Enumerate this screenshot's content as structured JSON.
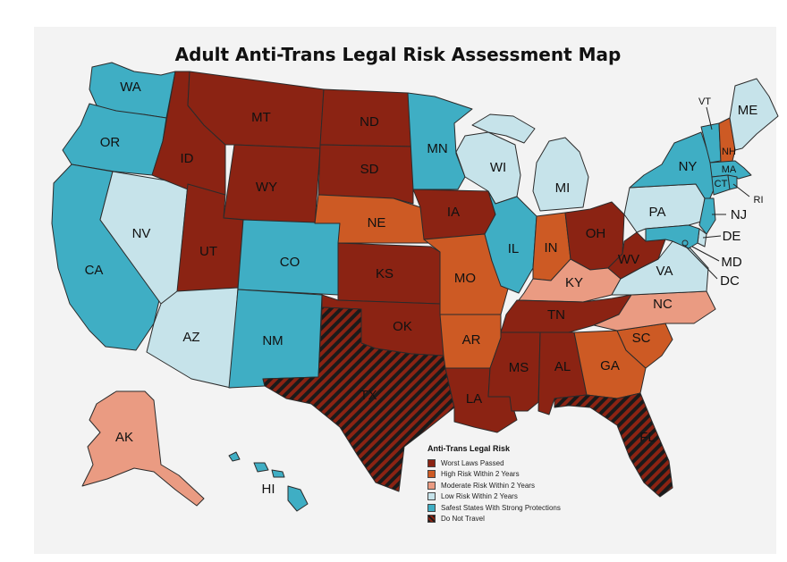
{
  "title": "Adult Anti-Trans Legal Risk Assessment Map",
  "legend": {
    "title": "Anti-Trans Legal Risk",
    "items": [
      {
        "key": "worst",
        "label": "Worst Laws Passed",
        "color": "#8b2313"
      },
      {
        "key": "high",
        "label": "High Risk Within 2 Years",
        "color": "#cd5a24"
      },
      {
        "key": "moderate",
        "label": "Moderate Risk Within 2 Years",
        "color": "#ea9b82"
      },
      {
        "key": "low",
        "label": "Low Risk Within 2 Years",
        "color": "#c6e3ea"
      },
      {
        "key": "safe",
        "label": "Safest States With Strong Protections",
        "color": "#3faec4"
      },
      {
        "key": "donot",
        "label": "Do Not Travel",
        "color": "#5a1a10"
      }
    ]
  },
  "states": {
    "WA": {
      "label": "WA",
      "risk": "safe"
    },
    "OR": {
      "label": "OR",
      "risk": "safe"
    },
    "CA": {
      "label": "CA",
      "risk": "safe"
    },
    "NV": {
      "label": "NV",
      "risk": "low"
    },
    "ID": {
      "label": "ID",
      "risk": "worst"
    },
    "MT": {
      "label": "MT",
      "risk": "worst"
    },
    "WY": {
      "label": "WY",
      "risk": "worst"
    },
    "UT": {
      "label": "UT",
      "risk": "worst"
    },
    "AZ": {
      "label": "AZ",
      "risk": "low"
    },
    "CO": {
      "label": "CO",
      "risk": "safe"
    },
    "NM": {
      "label": "NM",
      "risk": "safe"
    },
    "ND": {
      "label": "ND",
      "risk": "worst"
    },
    "SD": {
      "label": "SD",
      "risk": "worst"
    },
    "NE": {
      "label": "NE",
      "risk": "high"
    },
    "KS": {
      "label": "KS",
      "risk": "worst"
    },
    "OK": {
      "label": "OK",
      "risk": "worst"
    },
    "TX": {
      "label": "TX",
      "risk": "donot"
    },
    "MN": {
      "label": "MN",
      "risk": "safe"
    },
    "IA": {
      "label": "IA",
      "risk": "worst"
    },
    "MO": {
      "label": "MO",
      "risk": "high"
    },
    "AR": {
      "label": "AR",
      "risk": "high"
    },
    "LA": {
      "label": "LA",
      "risk": "worst"
    },
    "WI": {
      "label": "WI",
      "risk": "low"
    },
    "IL": {
      "label": "IL",
      "risk": "safe"
    },
    "MI": {
      "label": "MI",
      "risk": "low"
    },
    "IN": {
      "label": "IN",
      "risk": "high"
    },
    "OH": {
      "label": "OH",
      "risk": "worst"
    },
    "KY": {
      "label": "KY",
      "risk": "moderate"
    },
    "TN": {
      "label": "TN",
      "risk": "worst"
    },
    "MS": {
      "label": "MS",
      "risk": "worst"
    },
    "AL": {
      "label": "AL",
      "risk": "worst"
    },
    "GA": {
      "label": "GA",
      "risk": "high"
    },
    "FL": {
      "label": "FL",
      "risk": "donot"
    },
    "SC": {
      "label": "SC",
      "risk": "high"
    },
    "NC": {
      "label": "NC",
      "risk": "moderate"
    },
    "VA": {
      "label": "VA",
      "risk": "low"
    },
    "WV": {
      "label": "WV",
      "risk": "worst"
    },
    "PA": {
      "label": "PA",
      "risk": "low"
    },
    "NY": {
      "label": "NY",
      "risk": "safe"
    },
    "VT": {
      "label": "VT",
      "risk": "safe"
    },
    "NH": {
      "label": "NH",
      "risk": "high"
    },
    "ME": {
      "label": "ME",
      "risk": "low"
    },
    "MA": {
      "label": "MA",
      "risk": "safe"
    },
    "CT": {
      "label": "CT",
      "risk": "safe"
    },
    "RI": {
      "label": "RI",
      "risk": "safe"
    },
    "NJ": {
      "label": "NJ",
      "risk": "safe"
    },
    "DE": {
      "label": "DE",
      "risk": "low"
    },
    "MD": {
      "label": "MD",
      "risk": "safe"
    },
    "DC": {
      "label": "DC",
      "risk": "safe"
    },
    "AK": {
      "label": "AK",
      "risk": "moderate"
    },
    "HI": {
      "label": "HI",
      "risk": "safe"
    }
  }
}
